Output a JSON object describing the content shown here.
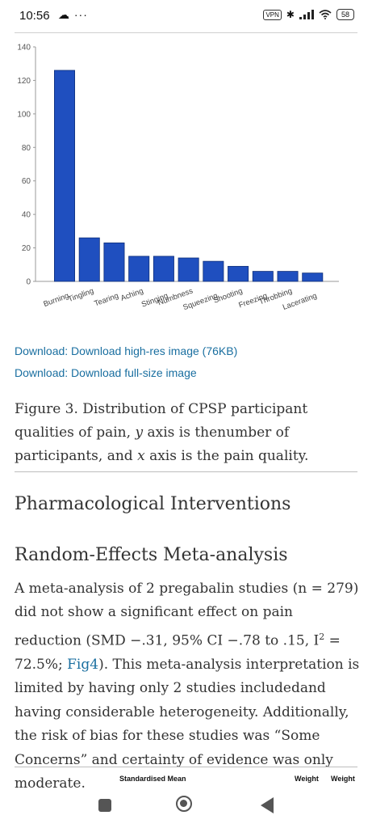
{
  "status_bar": {
    "time": "10:56",
    "left_icons": "☁ ···",
    "vpn": "VPN",
    "battery": "58"
  },
  "chart_data": {
    "type": "bar",
    "categories": [
      "Burning",
      "Tingling",
      "Tearing",
      "Aching",
      "Stinging",
      "Numbness",
      "Squeezing",
      "Shooting",
      "Freezing",
      "Throbbing",
      "Lacerating"
    ],
    "values": [
      126,
      26,
      23,
      15,
      15,
      14,
      12,
      9,
      6,
      6,
      5
    ],
    "yticks": [
      0,
      20,
      40,
      60,
      80,
      100,
      120,
      140
    ],
    "ylim": [
      0,
      140
    ],
    "bar_color": "#1f4fbf",
    "grid": false
  },
  "links": {
    "download_high_res": "Download: Download high-res image (76KB)",
    "download_full_size": "Download: Download full-size image"
  },
  "caption": {
    "part1": "Figure 3. Distribution of CPSP participant qualities of pain, ",
    "y": "y",
    "part2": " axis is the",
    "part3": "number of participants, and ",
    "x": "x",
    "part4": " axis is the pain quality."
  },
  "section_title": "Pharmacological Interventions",
  "subsection_title": "Random-Effects Meta-analysis",
  "body": {
    "part1": "A meta-analysis of 2 pregabalin studies (n = 279) did not show a significant effect on pain reduction (SMD −.31, 95% CI −.78 to .15, I",
    "sup": "2",
    "part2": " = 72.5%; ",
    "fig_link": "Fig4",
    "part3": "). This meta-analysis interpretation is limited by having only 2 studies included",
    "part4": "and having considerable heterogeneity. Additionally, the risk of bias for these studies was “Some Concerns” and certainty of evidence was only moderate."
  },
  "forest_plot_headers": {
    "col1": "Standardised Mean",
    "col2": "Weight",
    "col3": "Weight"
  }
}
